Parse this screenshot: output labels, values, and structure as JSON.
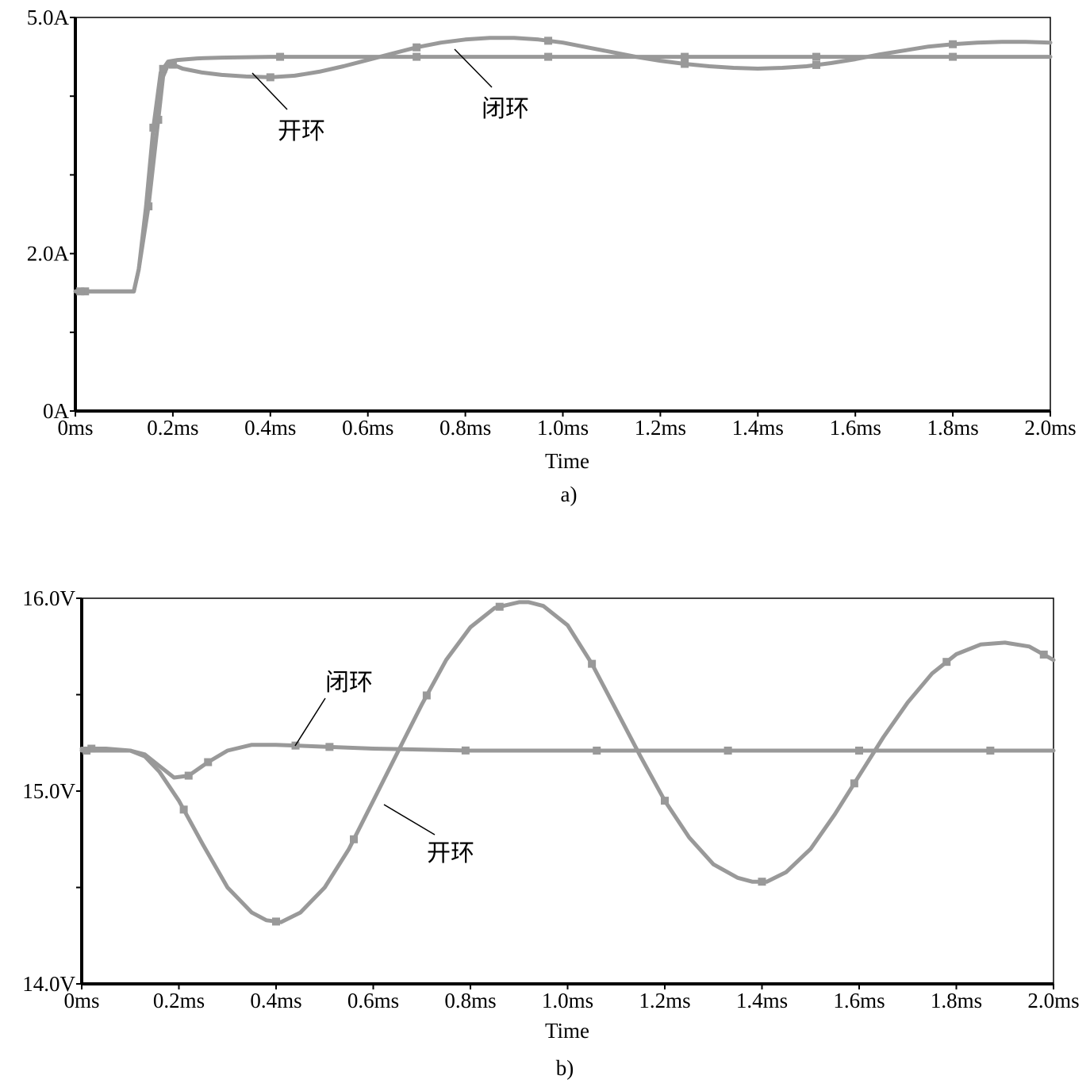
{
  "chart_data": [
    {
      "type": "line",
      "panel_label": "a)",
      "title": "",
      "xlabel": "Time",
      "ylabel": "",
      "xlim": [
        0,
        2.0
      ],
      "ylim": [
        0,
        5.0
      ],
      "x_ticks": [
        0,
        0.2,
        0.4,
        0.6,
        0.8,
        1.0,
        1.2,
        1.4,
        1.6,
        1.8,
        2.0
      ],
      "x_tick_labels": [
        "0ms",
        "0.2ms",
        "0.4ms",
        "0.6ms",
        "0.8ms",
        "1.0ms",
        "1.2ms",
        "1.4ms",
        "1.6ms",
        "1.8ms",
        "2.0ms"
      ],
      "y_ticks": [
        0,
        1,
        2,
        3,
        4,
        5
      ],
      "y_tick_labels": [
        "0A",
        "",
        "2.0A",
        "",
        "",
        "5.0A"
      ],
      "grid": false,
      "series": [
        {
          "name": "开环",
          "x": [
            0,
            0.12,
            0.13,
            0.15,
            0.17,
            0.18,
            0.19,
            0.2,
            0.22,
            0.26,
            0.3,
            0.35,
            0.4,
            0.45,
            0.5,
            0.55,
            0.6,
            0.65,
            0.7,
            0.75,
            0.8,
            0.85,
            0.9,
            0.95,
            1.0,
            1.05,
            1.1,
            1.15,
            1.2,
            1.25,
            1.3,
            1.35,
            1.4,
            1.45,
            1.5,
            1.55,
            1.6,
            1.65,
            1.7,
            1.75,
            1.8,
            1.85,
            1.9,
            1.95,
            2.0
          ],
          "y": [
            1.52,
            1.52,
            1.8,
            2.6,
            3.7,
            4.25,
            4.4,
            4.4,
            4.35,
            4.3,
            4.27,
            4.25,
            4.24,
            4.26,
            4.31,
            4.38,
            4.46,
            4.54,
            4.62,
            4.68,
            4.72,
            4.74,
            4.74,
            4.72,
            4.68,
            4.62,
            4.56,
            4.5,
            4.45,
            4.41,
            4.38,
            4.36,
            4.35,
            4.36,
            4.38,
            4.42,
            4.47,
            4.53,
            4.58,
            4.63,
            4.66,
            4.68,
            4.69,
            4.69,
            4.68
          ],
          "marker_x": [
            0.02,
            0.15,
            0.17,
            0.2,
            0.4,
            0.7,
            0.97,
            1.25,
            1.52,
            1.8
          ]
        },
        {
          "name": "闭环",
          "x": [
            0,
            0.12,
            0.13,
            0.145,
            0.16,
            0.175,
            0.19,
            0.21,
            0.25,
            0.3,
            0.4,
            0.6,
            0.8,
            1.0,
            1.2,
            1.4,
            1.6,
            1.8,
            2.0
          ],
          "y": [
            1.52,
            1.52,
            1.8,
            2.6,
            3.6,
            4.3,
            4.44,
            4.46,
            4.48,
            4.49,
            4.5,
            4.5,
            4.5,
            4.5,
            4.5,
            4.5,
            4.5,
            4.5,
            4.5
          ],
          "marker_x": [
            0.01,
            0.16,
            0.18,
            0.42,
            0.7,
            0.97,
            1.25,
            1.52,
            1.8
          ]
        }
      ],
      "annotations": [
        {
          "text": "开环",
          "series": "开环"
        },
        {
          "text": "闭环",
          "series": "闭环"
        }
      ]
    },
    {
      "type": "line",
      "panel_label": "b)",
      "title": "",
      "xlabel": "Time",
      "ylabel": "",
      "xlim": [
        0,
        2.0
      ],
      "ylim": [
        14.0,
        16.0
      ],
      "x_ticks": [
        0,
        0.2,
        0.4,
        0.6,
        0.8,
        1.0,
        1.2,
        1.4,
        1.6,
        1.8,
        2.0
      ],
      "x_tick_labels": [
        "0ms",
        "0.2ms",
        "0.4ms",
        "0.6ms",
        "0.8ms",
        "1.0ms",
        "1.2ms",
        "1.4ms",
        "1.6ms",
        "1.8ms",
        "2.0ms"
      ],
      "y_ticks": [
        14.0,
        14.5,
        15.0,
        15.5,
        16.0
      ],
      "y_tick_labels": [
        "14.0V",
        "",
        "15.0V",
        "",
        "16.0V"
      ],
      "grid": false,
      "series": [
        {
          "name": "开环",
          "x": [
            0,
            0.05,
            0.1,
            0.13,
            0.16,
            0.2,
            0.25,
            0.3,
            0.35,
            0.38,
            0.41,
            0.45,
            0.5,
            0.55,
            0.6,
            0.65,
            0.7,
            0.75,
            0.8,
            0.85,
            0.9,
            0.92,
            0.95,
            1.0,
            1.05,
            1.1,
            1.15,
            1.2,
            1.25,
            1.3,
            1.35,
            1.38,
            1.41,
            1.45,
            1.5,
            1.55,
            1.6,
            1.65,
            1.7,
            1.75,
            1.8,
            1.85,
            1.9,
            1.95,
            2.0
          ],
          "y": [
            15.22,
            15.22,
            15.21,
            15.18,
            15.1,
            14.95,
            14.72,
            14.5,
            14.37,
            14.33,
            14.32,
            14.37,
            14.5,
            14.7,
            14.95,
            15.2,
            15.45,
            15.68,
            15.85,
            15.95,
            15.98,
            15.98,
            15.96,
            15.86,
            15.66,
            15.42,
            15.18,
            14.95,
            14.76,
            14.62,
            14.55,
            14.53,
            14.53,
            14.58,
            14.7,
            14.88,
            15.08,
            15.28,
            15.46,
            15.61,
            15.71,
            15.76,
            15.77,
            15.75,
            15.68
          ],
          "marker_x": [
            0.02,
            0.21,
            0.4,
            0.56,
            0.71,
            0.86,
            1.05,
            1.2,
            1.4,
            1.59,
            1.78,
            1.98
          ]
        },
        {
          "name": "闭环",
          "x": [
            0,
            0.1,
            0.13,
            0.16,
            0.19,
            0.22,
            0.26,
            0.3,
            0.35,
            0.4,
            0.5,
            0.6,
            0.8,
            1.0,
            1.2,
            1.4,
            1.6,
            1.8,
            2.0
          ],
          "y": [
            15.21,
            15.21,
            15.19,
            15.13,
            15.07,
            15.08,
            15.15,
            15.21,
            15.24,
            15.24,
            15.23,
            15.22,
            15.21,
            15.21,
            15.21,
            15.21,
            15.21,
            15.21,
            15.21
          ],
          "marker_x": [
            0.01,
            0.22,
            0.26,
            0.44,
            0.51,
            0.79,
            1.06,
            1.33,
            1.6,
            1.87
          ]
        }
      ],
      "annotations": [
        {
          "text": "闭环",
          "series": "闭环"
        },
        {
          "text": "开环",
          "series": "开环"
        }
      ]
    }
  ]
}
